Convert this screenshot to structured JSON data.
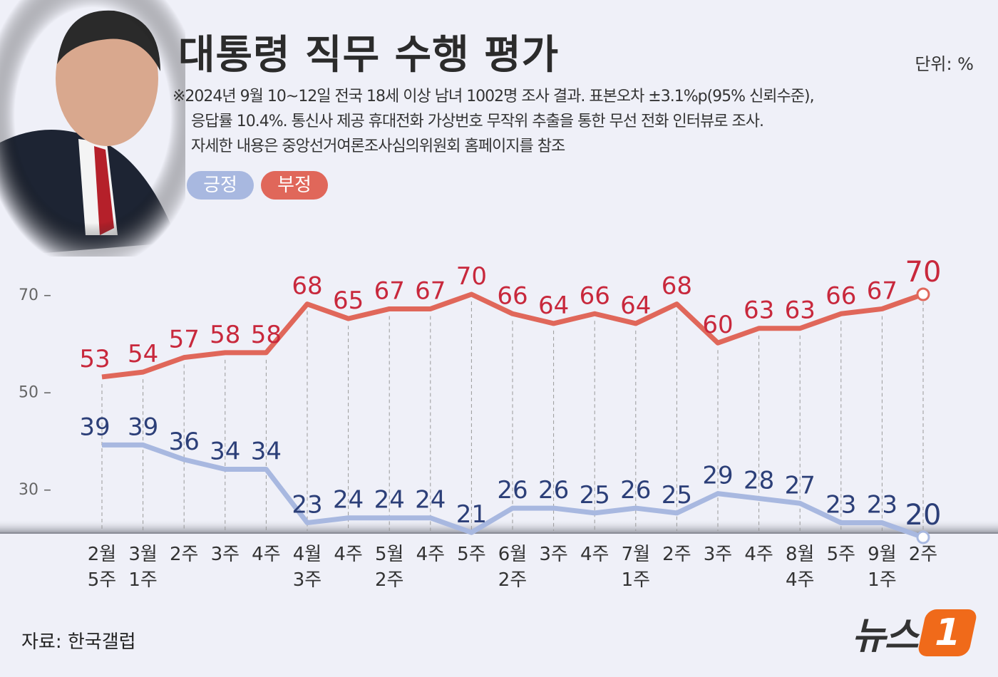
{
  "title": "대통령 직무 수행 평가",
  "unit": "단위: %",
  "notes": [
    "※2024년 9월 10~12일 전국 18세 이상 남녀 1002명 조사 결과. 표본오차 ±3.1%p(95% 신뢰수준),",
    "응답률 10.4%. 통신사 제공 휴대전화 가상번호 무작위 추출을 통한 무선 전화 인터뷰로 조사.",
    "자세한 내용은 중앙선거여론조사심의위원회 홈페이지를 참조"
  ],
  "source": "자료: 한국갤럽",
  "logo": {
    "text": "뉴스",
    "mark": "1"
  },
  "colors": {
    "positive_line": "#a8b8e0",
    "positive_label": "#2c3f78",
    "negative_line": "#e0675a",
    "negative_label": "#c8283c",
    "background": "#eff0f8"
  },
  "chart_data": {
    "type": "line",
    "categories": [
      "2월\n5주",
      "3월\n1주",
      "2주",
      "3주",
      "4주",
      "4월\n3주",
      "4주",
      "5월\n2주",
      "4주",
      "5주",
      "6월\n2주",
      "3주",
      "4주",
      "7월\n1주",
      "2주",
      "3주",
      "4주",
      "8월\n4주",
      "5주",
      "9월\n1주",
      "2주"
    ],
    "series": [
      {
        "name": "긍정",
        "values": [
          39,
          39,
          36,
          34,
          34,
          23,
          24,
          24,
          24,
          21,
          26,
          26,
          25,
          26,
          25,
          29,
          28,
          27,
          23,
          23,
          20
        ]
      },
      {
        "name": "부정",
        "values": [
          53,
          54,
          57,
          58,
          58,
          68,
          65,
          67,
          67,
          70,
          66,
          64,
          66,
          64,
          68,
          60,
          63,
          63,
          66,
          67,
          70
        ]
      }
    ],
    "yticks": [
      30,
      50,
      70
    ],
    "legend_placement": "top-left",
    "grid": "vertical dashed"
  }
}
